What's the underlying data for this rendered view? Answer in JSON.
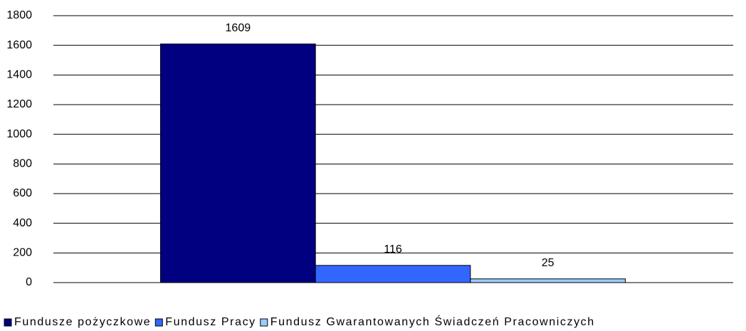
{
  "chart_data": {
    "type": "bar",
    "categories": [
      null
    ],
    "series": [
      {
        "name": "Fundusze pożyczkowe",
        "color": "#000080",
        "values": [
          1609
        ]
      },
      {
        "name": "Fundusz Pracy",
        "color": "#3366ff",
        "values": [
          116
        ]
      },
      {
        "name": "Fundusz Gwarantowanych Świadczeń Pracowniczych",
        "color": "#99ccff",
        "values": [
          25
        ]
      }
    ],
    "ylim": [
      0,
      1800
    ],
    "yticks": [
      0,
      200,
      400,
      600,
      800,
      1000,
      1200,
      1400,
      1600,
      1800
    ],
    "grid": true,
    "legend": "bottom"
  }
}
